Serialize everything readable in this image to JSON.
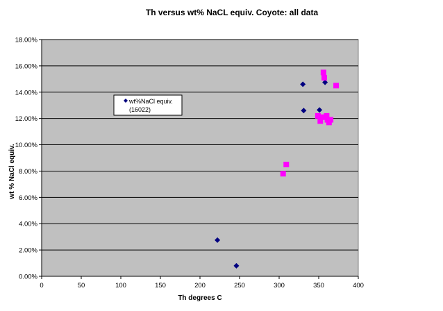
{
  "chart_data": {
    "type": "scatter",
    "title": "Th versus wt% NaCL equiv. Coyote: all data",
    "xlabel": "Th degrees  C",
    "ylabel": "wt % NaCl equiv.",
    "xlim": [
      0,
      400
    ],
    "ylim": [
      0,
      0.18
    ],
    "x_ticks": [
      "0",
      "50",
      "100",
      "150",
      "200",
      "250",
      "300",
      "350",
      "400"
    ],
    "y_ticks": [
      "0.00%",
      "2.00%",
      "4.00%",
      "6.00%",
      "8.00%",
      "10.00%",
      "12.00%",
      "14.00%",
      "16.00%",
      "18.00%"
    ],
    "grid": "horizontal",
    "background": "#c0c0c0",
    "legend": {
      "placement": "upper-left",
      "label_line1": "wt%NaCl equiv.",
      "label_line2": "(16022)"
    },
    "series": [
      {
        "name": "wt%NaCl equiv. (16022)",
        "marker": "diamond",
        "color": "#000080",
        "x": [
          222,
          246,
          330,
          331,
          351,
          358
        ],
        "y": [
          0.0275,
          0.008,
          0.146,
          0.126,
          0.1265,
          0.1475
        ]
      },
      {
        "marker": "square",
        "color": "#ff00ff",
        "x": [
          305,
          309,
          349,
          352,
          354,
          356,
          357,
          360,
          361,
          363,
          365,
          372
        ],
        "y": [
          0.078,
          0.085,
          0.122,
          0.118,
          0.121,
          0.155,
          0.151,
          0.122,
          0.119,
          0.117,
          0.119,
          0.145
        ]
      }
    ]
  }
}
